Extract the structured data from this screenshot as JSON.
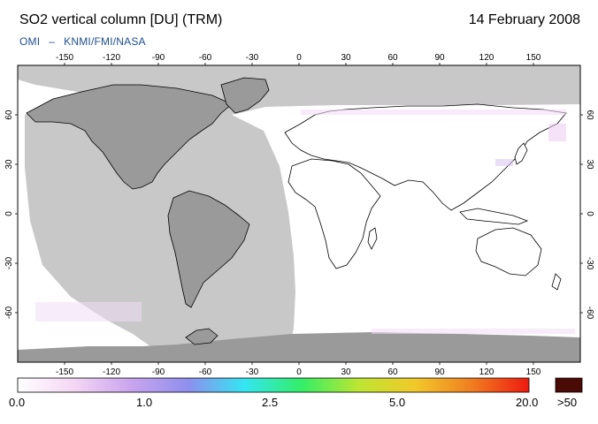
{
  "header": {
    "title": "SO2 vertical column [DU] (TRM)",
    "date": "14 February 2008",
    "credit_left": "OMI",
    "credit_dash": "–",
    "credit_right": "KNMI/FMI/NASA"
  },
  "map": {
    "lon_ticks": [
      "-150",
      "-120",
      "-90",
      "-60",
      "-30",
      "0",
      "30",
      "60",
      "90",
      "120",
      "150"
    ],
    "lat_ticks_left": [
      "60",
      "30",
      "0",
      "-30",
      "-60"
    ],
    "lat_ticks_right": [
      "60",
      "30",
      "0",
      "-30",
      "-60"
    ],
    "colors": {
      "no_data": "#c8c8c8",
      "land_no_data": "#9a9a9a",
      "background": "#ffffff",
      "coastline": "#000000"
    }
  },
  "colorbar": {
    "labels": [
      "0.0",
      "1.0",
      "2.5",
      "5.0",
      "20.0"
    ],
    "overflow_label": ">50",
    "overflow_color": "#4a0a05",
    "gradient_colors": [
      "#ffffff",
      "#f4d6f4",
      "#c9a4ee",
      "#8f8fee",
      "#33e6f2",
      "#33ee66",
      "#bde632",
      "#f2c82a",
      "#f07d20",
      "#ee1a10"
    ]
  }
}
